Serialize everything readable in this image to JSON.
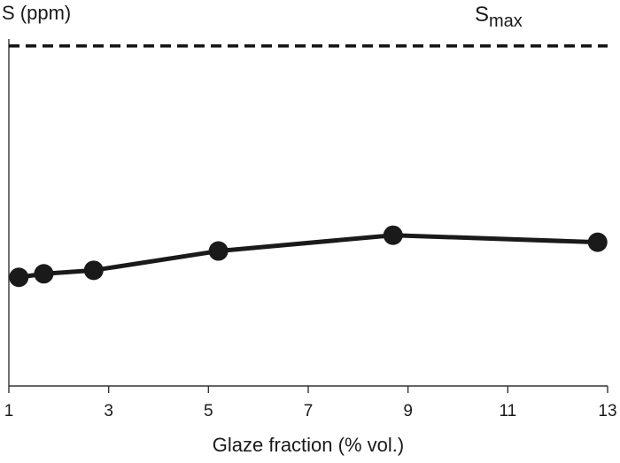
{
  "chart_data": {
    "type": "line",
    "ylabel": "S (ppm)",
    "xlabel": "Glaze fraction (% vol.)",
    "xlim": [
      1,
      13
    ],
    "xticks": [
      "1",
      "3",
      "5",
      "7",
      "9",
      "11",
      "13"
    ],
    "ylim": [
      0,
      1
    ],
    "y_ticks_labeled": false,
    "grid": false,
    "reference_line": {
      "label_main": "S",
      "label_sub": "max",
      "style": "dashed",
      "value": 0.97
    },
    "series": [
      {
        "x": [
          1.2,
          1.7,
          2.7,
          5.2,
          8.7,
          12.8
        ],
        "y": [
          0.31,
          0.32,
          0.33,
          0.385,
          0.43,
          0.41
        ]
      }
    ],
    "colors": {
      "line": "#1a1a1a",
      "marker": "#1a1a1a",
      "axis": "#333333"
    }
  }
}
